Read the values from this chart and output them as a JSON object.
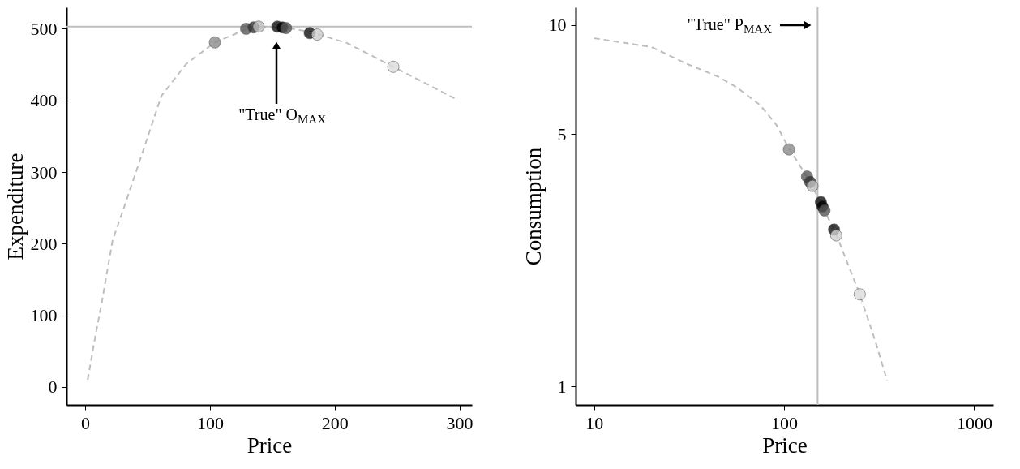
{
  "chart_data": [
    {
      "type": "scatter",
      "xlabel": "Price",
      "ylabel": "Expenditure",
      "xlim": [
        -15,
        310
      ],
      "ylim": [
        -25,
        530
      ],
      "xticks": [
        0,
        100,
        200,
        300
      ],
      "yticks": [
        0,
        100,
        200,
        300,
        400,
        500
      ],
      "grid": false,
      "series": [
        {
          "type": "line",
          "marker": "none",
          "line_style": "dashed",
          "color": "#bebebe",
          "x": [
            2,
            8,
            13,
            22,
            30,
            44,
            61,
            81,
            104,
            130,
            155,
            180,
            210,
            247,
            275,
            296
          ],
          "values": [
            10,
            70,
            115,
            205,
            245,
            317,
            406,
            451,
            481,
            500,
            503,
            496,
            480,
            447,
            422,
            403
          ]
        },
        {
          "marker": "circle",
          "x": [
            104,
            129,
            135,
            139,
            154,
            158,
            161,
            180,
            186,
            247
          ],
          "values": [
            481,
            500,
            502,
            503,
            503,
            502,
            501,
            494,
            492,
            447
          ],
          "colors": [
            "#8c8c8c",
            "#595959",
            "#333333",
            "#bfbfbf",
            "#111111",
            "#000000",
            "#555555",
            "#111111",
            "#d0d0d0",
            "#dddddd"
          ]
        }
      ],
      "ref_lines": [
        {
          "axis": "y",
          "value": 503,
          "color": "#bebebe"
        }
      ],
      "annotations": [
        "\"True\" O$_{MAX}$"
      ]
    },
    {
      "type": "scatter",
      "xlabel": "Price",
      "ylabel": "Consumption",
      "log": "xy",
      "xlim": [
        8,
        1260
      ],
      "ylim": [
        0.89,
        11.2
      ],
      "xticks": [
        10,
        100,
        1000
      ],
      "yticks": [
        1,
        5,
        10
      ],
      "grid": false,
      "series": [
        {
          "type": "line",
          "marker": "none",
          "line_style": "dashed",
          "color": "#bebebe",
          "x": [
            10,
            20,
            31,
            45,
            57,
            75,
            91,
            105,
            130,
            155,
            190,
            250,
            300,
            348
          ],
          "values": [
            9.2,
            8.7,
            7.8,
            7.2,
            6.7,
            6.0,
            5.3,
            4.6,
            3.85,
            3.25,
            2.6,
            1.8,
            1.35,
            1.04
          ]
        },
        {
          "marker": "circle",
          "x": [
            106,
            132,
            137,
            141,
            156,
            159,
            163,
            183,
            188,
            250
          ],
          "values": [
            4.53,
            3.81,
            3.68,
            3.59,
            3.24,
            3.15,
            3.07,
            2.72,
            2.62,
            1.8
          ],
          "colors": [
            "#8c8c8c",
            "#595959",
            "#333333",
            "#bfbfbf",
            "#111111",
            "#000000",
            "#555555",
            "#111111",
            "#d0d0d0",
            "#dddddd"
          ]
        }
      ],
      "ref_lines": [
        {
          "axis": "x",
          "value": 150,
          "color": "#bebebe"
        }
      ],
      "annotations": [
        "\"True\" P$_{MAX}$"
      ]
    }
  ]
}
